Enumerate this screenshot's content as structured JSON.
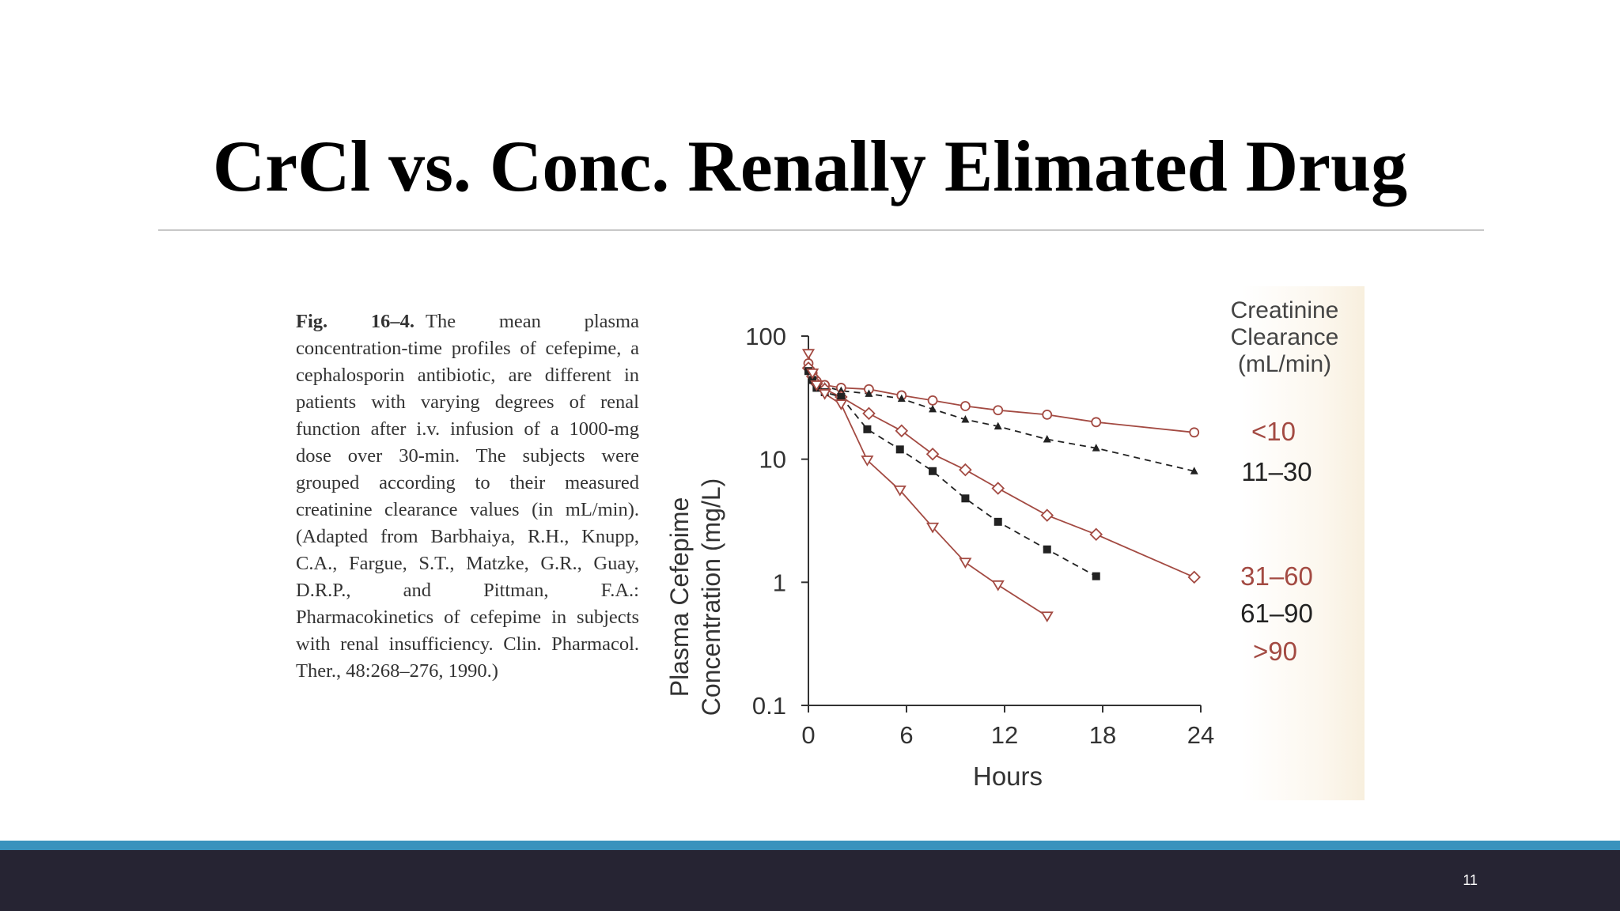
{
  "slide": {
    "title": "CrCl vs. Conc. Renally Elimated Drug",
    "number": "11",
    "caption_label": "Fig. 16–4.",
    "caption_text": "The mean plasma concentration-time profiles of cefepime, a cephalosporin antibiotic, are different in patients with varying degrees of renal function after i.v. infusion of a 1000-mg dose over 30-min. The subjects were grouped according to their measured creatinine clearance values (in mL/min). (Adapted from Barbhaiya, R.H., Knupp, C.A., Fargue, S.T., Matzke, G.R., Guay, D.R.P., and Pittman, F.A.: Pharmacokinetics of cefepime in subjects with renal insufficiency. Clin. Pharmacol. Ther., 48:268–276, 1990.)"
  },
  "chart_data": {
    "type": "line",
    "title": "",
    "xlabel": "Hours",
    "ylabel_line1": "Plasma Cefepime",
    "ylabel_line2": "Concentration (mg/L)",
    "legend_title_line1": "Creatinine",
    "legend_title_line2": "Clearance",
    "legend_title_line3": "(mL/min)",
    "legend_position": "right",
    "xlim": [
      0,
      24
    ],
    "ylim": [
      0.1,
      100
    ],
    "y_scale": "log",
    "x_ticks": [
      "0",
      "6",
      "12",
      "18",
      "24"
    ],
    "y_ticks": [
      "0.1",
      "1",
      "10",
      "100"
    ],
    "grid": false,
    "colors": {
      "red": "#a34a42",
      "dark": "#222222"
    },
    "series": [
      {
        "name": "<10",
        "color": "#a34a42",
        "marker": "circle",
        "dash": false,
        "x": [
          0,
          0.25,
          0.5,
          1,
          2,
          3.7,
          5.7,
          7.6,
          9.6,
          11.6,
          14.6,
          17.6,
          23.6
        ],
        "y": [
          60,
          50,
          43,
          40,
          38,
          37,
          33,
          30,
          27,
          25,
          23,
          20,
          16.5
        ]
      },
      {
        "name": "11–30",
        "color": "#222222",
        "marker": "triangle",
        "dash": true,
        "x": [
          0,
          0.25,
          0.5,
          1,
          2,
          3.7,
          5.7,
          7.6,
          9.6,
          11.6,
          14.6,
          17.6,
          23.6
        ],
        "y": [
          55,
          48,
          42,
          39,
          36,
          34,
          31,
          25.5,
          21,
          18.5,
          14.5,
          12.3,
          8
        ]
      },
      {
        "name": "31–60",
        "color": "#a34a42",
        "marker": "diamond",
        "dash": false,
        "x": [
          0,
          0.25,
          0.5,
          1,
          2,
          3.7,
          5.7,
          7.6,
          9.6,
          11.6,
          14.6,
          17.6,
          23.6
        ],
        "y": [
          55,
          47,
          41,
          37,
          32,
          23.5,
          17,
          11,
          8.2,
          5.8,
          3.5,
          2.45,
          1.1
        ]
      },
      {
        "name": "61–90",
        "color": "#222222",
        "marker": "square",
        "dash": true,
        "x": [
          0,
          0.25,
          0.5,
          1,
          2,
          3.6,
          5.6,
          7.6,
          9.6,
          11.6,
          14.6,
          17.6
        ],
        "y": [
          52,
          44,
          38,
          35,
          32,
          17.5,
          12,
          8,
          4.8,
          3.1,
          1.85,
          1.12
        ]
      },
      {
        "name": ">90",
        "color": "#a34a42",
        "marker": "triangle-down",
        "dash": false,
        "x": [
          0,
          0.25,
          0.5,
          1,
          2,
          3.6,
          5.6,
          7.6,
          9.6,
          11.6,
          14.6
        ],
        "y": [
          72,
          50,
          40,
          34,
          28,
          9.8,
          5.6,
          2.8,
          1.45,
          0.95,
          0.53
        ]
      }
    ]
  }
}
